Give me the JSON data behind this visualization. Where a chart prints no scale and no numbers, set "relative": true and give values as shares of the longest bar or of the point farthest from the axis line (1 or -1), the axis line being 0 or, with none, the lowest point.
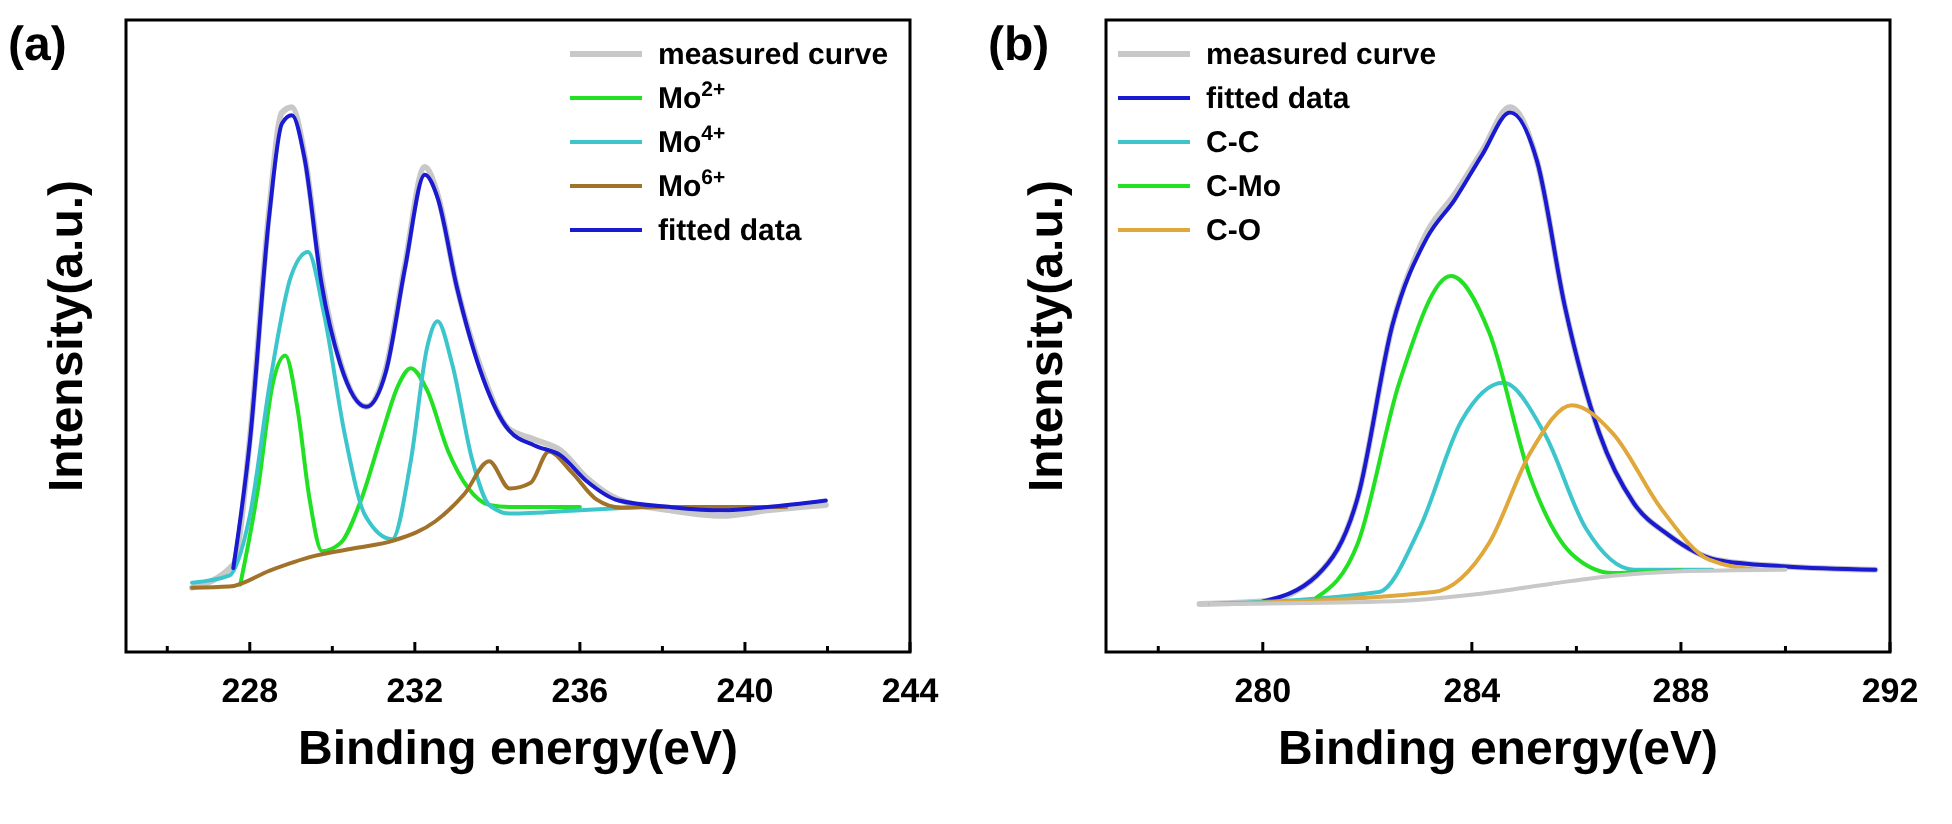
{
  "chart_data": [
    {
      "type": "line",
      "title": "(a)",
      "xlabel": "Binding energy(eV)",
      "ylabel": "Intensity(a.u.)",
      "relative": true,
      "legend": "top right",
      "xlim": [
        225,
        244
      ],
      "xticks": [
        {
          "value": 226,
          "label": null
        },
        228,
        {
          "value": 230,
          "label": null
        },
        232,
        {
          "value": 234,
          "label": null
        },
        236,
        {
          "value": 238,
          "label": null
        },
        240,
        {
          "value": 242,
          "label": null
        },
        244
      ],
      "series": [
        {
          "name": "measured curve",
          "color": "#c8c8c8",
          "x": [
            226.6,
            227.6,
            228.0,
            228.47,
            228.78,
            229.02,
            229.33,
            229.73,
            230.2,
            230.82,
            231.3,
            231.76,
            232.24,
            232.55,
            233.02,
            233.65,
            234.27,
            234.9,
            235.53,
            236.16,
            236.94,
            238.2,
            239.45,
            240.55,
            241.96
          ],
          "values": [
            0.118,
            0.16,
            0.39,
            0.81,
            0.99,
            1.0,
            0.91,
            0.69,
            0.53,
            0.45,
            0.52,
            0.71,
            0.89,
            0.84,
            0.67,
            0.51,
            0.41,
            0.39,
            0.37,
            0.32,
            0.28,
            0.26,
            0.25,
            0.26,
            0.27
          ]
        },
        {
          "name": "Mo$^{2+}$",
          "color": "#22e022",
          "x": [
            227.77,
            228.2,
            228.55,
            228.86,
            229.15,
            229.45,
            229.75,
            230.2,
            230.7,
            231.2,
            231.6,
            231.9,
            232.3,
            232.8,
            233.3,
            233.8,
            234.3,
            236
          ],
          "values": [
            0.124,
            0.3,
            0.49,
            0.544,
            0.45,
            0.28,
            0.185,
            0.2,
            0.28,
            0.4,
            0.49,
            0.521,
            0.48,
            0.37,
            0.3,
            0.27,
            0.266,
            0.266
          ]
        },
        {
          "name": "Mo$^{4+}$",
          "color": "#3cc6cc",
          "x": [
            226.6,
            227.5,
            228.0,
            228.5,
            229.0,
            229.41,
            229.8,
            230.3,
            230.8,
            231.45,
            231.9,
            232.3,
            232.55,
            232.9,
            233.4,
            233.8,
            234.3,
            236,
            237.5
          ],
          "values": [
            0.127,
            0.14,
            0.25,
            0.5,
            0.69,
            0.734,
            0.62,
            0.4,
            0.25,
            0.207,
            0.35,
            0.56,
            0.607,
            0.53,
            0.35,
            0.27,
            0.254,
            0.26,
            0.266
          ]
        },
        {
          "name": "Mo$^{6+}$",
          "color": "#a0722a",
          "x": [
            226.6,
            227.5,
            228.5,
            229.5,
            230.5,
            231.5,
            232.5,
            233.2,
            233.8,
            234.3,
            234.8,
            235.25,
            235.8,
            236.4,
            237,
            238,
            240,
            241
          ],
          "values": [
            0.118,
            0.12,
            0.15,
            0.175,
            0.19,
            0.205,
            0.24,
            0.29,
            0.35,
            0.3,
            0.31,
            0.368,
            0.33,
            0.28,
            0.265,
            0.266,
            0.266,
            0.266
          ]
        },
        {
          "name": "fitted data",
          "color": "#1a1ad0",
          "x": [
            227.6,
            228.0,
            228.47,
            228.78,
            229.02,
            229.33,
            229.73,
            230.2,
            230.82,
            231.3,
            231.76,
            232.24,
            232.55,
            233.02,
            233.65,
            234.27,
            234.9,
            235.53,
            236.16,
            236.94,
            238.2,
            239.45,
            240.55,
            241.96
          ],
          "values": [
            0.154,
            0.385,
            0.8,
            0.97,
            0.985,
            0.905,
            0.68,
            0.527,
            0.45,
            0.515,
            0.704,
            0.876,
            0.834,
            0.669,
            0.503,
            0.408,
            0.379,
            0.361,
            0.314,
            0.278,
            0.266,
            0.26,
            0.266,
            0.278
          ]
        }
      ]
    },
    {
      "type": "line",
      "title": "(b)",
      "xlabel": "Binding energy(eV)",
      "ylabel": "Intensity(a.u.)",
      "relative": true,
      "legend": "top left",
      "xlim": [
        277,
        292
      ],
      "xticks": [
        {
          "value": 278,
          "label": null
        },
        280,
        {
          "value": 282,
          "label": null
        },
        284,
        {
          "value": 286,
          "label": null
        },
        288,
        {
          "value": 290,
          "label": null
        },
        292
      ],
      "series": [
        {
          "name": "measured curve",
          "color": "#c8c8c8",
          "x": [
            278.79,
            280,
            281.03,
            281.82,
            282.48,
            283.14,
            283.67,
            284.2,
            284.73,
            285.25,
            285.78,
            286.44,
            287.1,
            287.76,
            288.69,
            290.0,
            291.72
          ],
          "values": [
            0.088,
            0.093,
            0.14,
            0.285,
            0.6,
            0.77,
            0.84,
            0.92,
            1.0,
            0.9,
            0.634,
            0.401,
            0.273,
            0.215,
            0.169,
            0.157,
            0.151
          ]
        },
        {
          "name": "fitted data",
          "color": "#1a1ad0",
          "x": [
            280,
            281.03,
            281.82,
            282.48,
            283.14,
            283.67,
            284.2,
            284.73,
            285.25,
            285.78,
            286.44,
            287.1,
            287.76,
            288.69,
            290.0,
            291.72
          ],
          "values": [
            0.093,
            0.14,
            0.285,
            0.6,
            0.76,
            0.83,
            0.913,
            0.99,
            0.9,
            0.634,
            0.401,
            0.273,
            0.215,
            0.169,
            0.157,
            0.151
          ]
        },
        {
          "name": "C-C",
          "color": "#3cc6cc",
          "x": [
            279,
            282.22,
            283.0,
            283.8,
            284.6,
            285.39,
            286.18,
            287.1,
            288.6
          ],
          "values": [
            0.088,
            0.11,
            0.227,
            0.424,
            0.494,
            0.401,
            0.227,
            0.151,
            0.151
          ]
        },
        {
          "name": "C-Mo",
          "color": "#22e022",
          "x": [
            281.03,
            281.82,
            282.61,
            283.6,
            284.33,
            285.12,
            285.91,
            286.7,
            288.0
          ],
          "values": [
            0.1,
            0.2,
            0.494,
            0.69,
            0.587,
            0.32,
            0.18,
            0.145,
            0.15
          ]
        },
        {
          "name": "C-O",
          "color": "#e0a83a",
          "x": [
            279,
            283.27,
            284.33,
            285.12,
            285.91,
            286.7,
            287.63,
            288.55,
            289.48
          ],
          "values": [
            0.088,
            0.11,
            0.2,
            0.366,
            0.453,
            0.401,
            0.262,
            0.169,
            0.151
          ]
        },
        {
          "color": "#c8c8c8",
          "x": [
            279,
            282.5,
            284,
            285.5,
            286.7,
            288,
            290
          ],
          "values": [
            0.088,
            0.093,
            0.105,
            0.125,
            0.14,
            0.148,
            0.151
          ]
        }
      ]
    }
  ]
}
